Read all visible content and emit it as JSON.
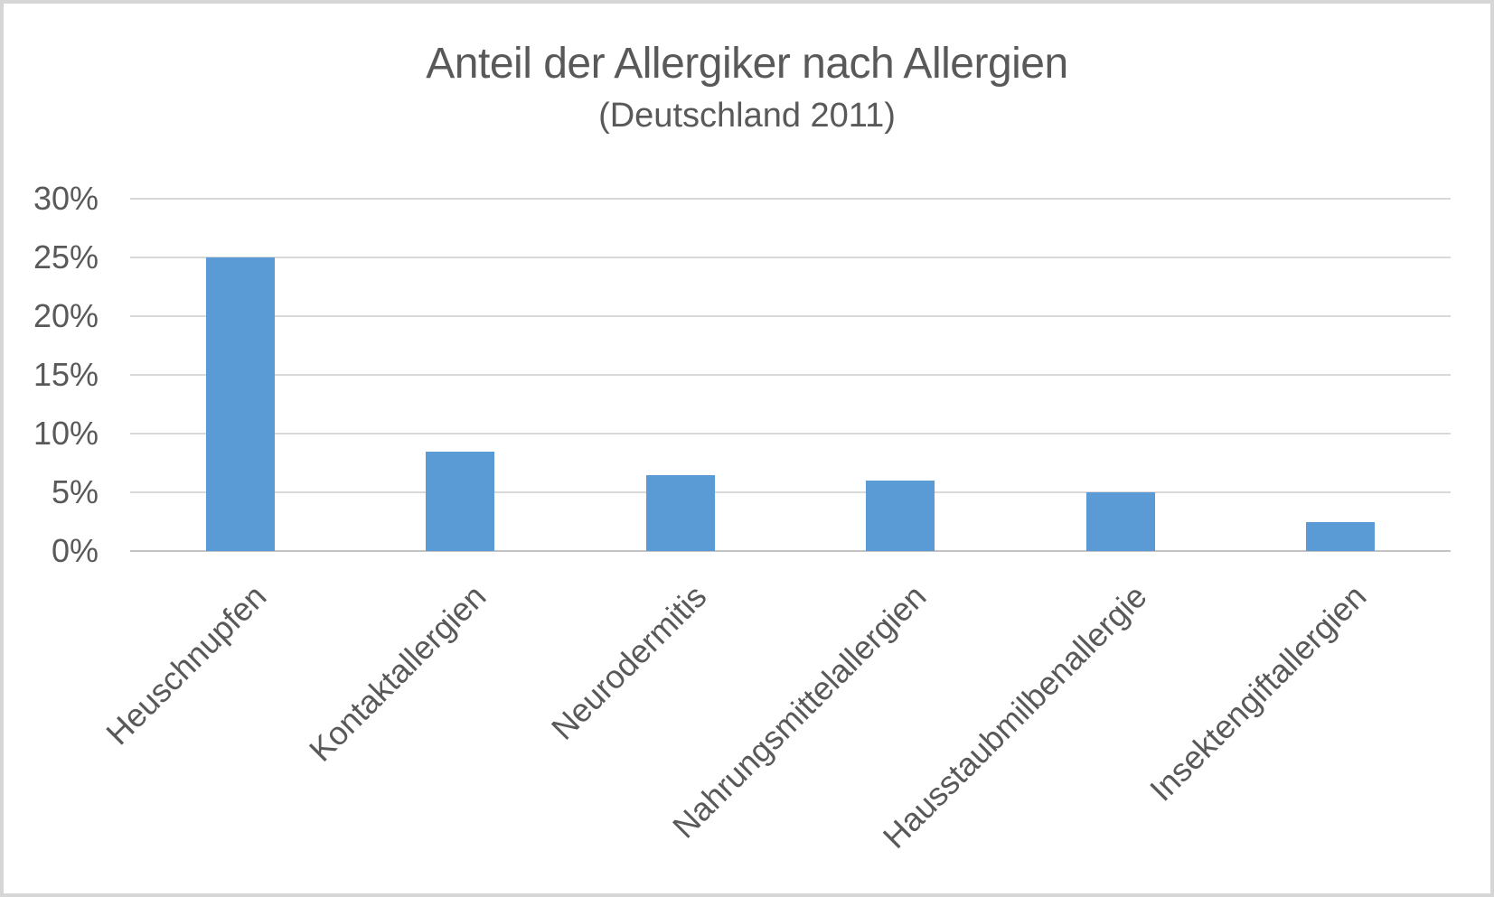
{
  "chart_data": {
    "type": "bar",
    "title": "Anteil der Allergiker nach Allergien",
    "subtitle": "(Deutschland 2011)",
    "categories": [
      "Heuschnupfen",
      "Kontaktallergien",
      "Neurodermitis",
      "Nahrungsmittelallergien",
      "Hausstaubmilbenallergie",
      "Insektengiftallergien"
    ],
    "values": [
      25,
      8.5,
      6.5,
      6,
      5,
      2.5
    ],
    "unit": "%",
    "xlabel": "",
    "ylabel": "",
    "ylim": [
      0,
      30
    ],
    "ytick_step": 5,
    "ytick_labels": [
      "0%",
      "5%",
      "10%",
      "15%",
      "20%",
      "25%",
      "30%"
    ],
    "grid": true,
    "legend": false,
    "colors": {
      "bar": "#5B9BD5",
      "gridline": "#D9D9D9",
      "axis_line": "#C3C3C3",
      "text": "#595959",
      "background": "#FFFFFF",
      "frame_border": "#D6D6D6"
    }
  }
}
